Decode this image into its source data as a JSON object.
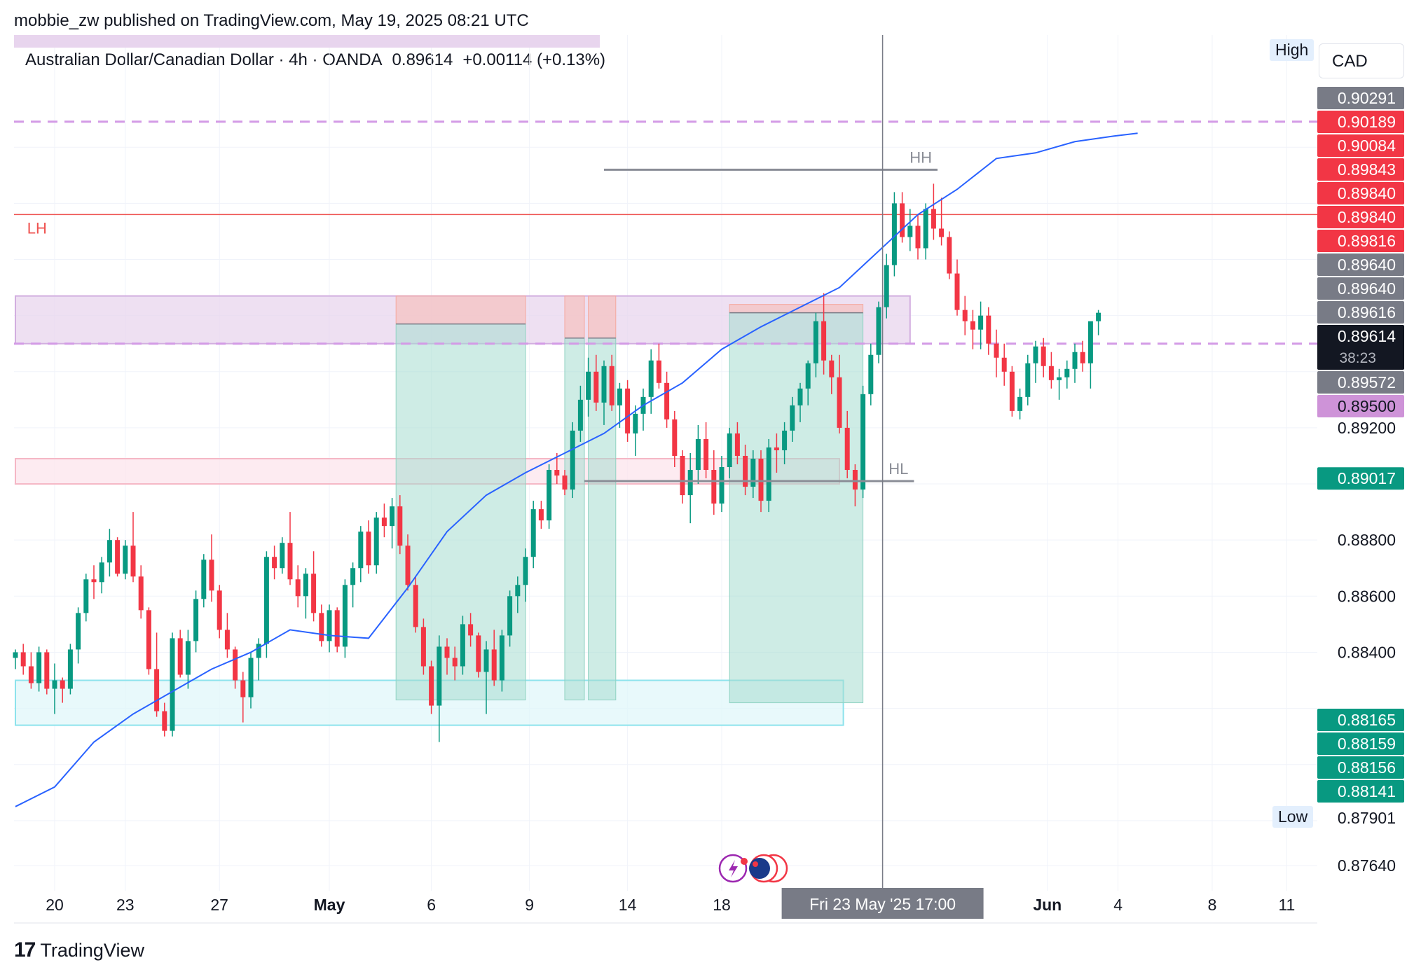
{
  "header": {
    "publisher": "mobbie_zw published on TradingView.com, May 19, 2025 08:21 UTC",
    "symbol": "Australian Dollar/Canadian Dollar · 4h · OANDA",
    "last": "0.89614",
    "change": "+0.00114 (+0.13%)"
  },
  "footer": {
    "brand": "TradingView",
    "brand_mark": "17"
  },
  "scale": {
    "currency": "CAD",
    "high_label": "High",
    "low_label": "Low"
  },
  "chart_data": {
    "type": "candlestick",
    "title": "Australian Dollar/Canadian Dollar · 4h · OANDA",
    "ylim": [
      0.8755,
      0.906
    ],
    "y_ticks": [
      0.8764,
      0.878,
      0.88,
      0.882,
      0.884,
      0.886,
      0.888,
      0.89,
      0.892,
      0.894,
      0.896,
      0.898,
      0.9,
      0.902
    ],
    "y_tick_labels": [
      {
        "value": 0.8764,
        "label": "0.87640"
      },
      {
        "value": 0.884,
        "label": "0.88400"
      },
      {
        "value": 0.886,
        "label": "0.88600"
      },
      {
        "value": 0.888,
        "label": "0.88800"
      },
      {
        "value": 0.892,
        "label": "0.89200"
      }
    ],
    "x_range": [
      0,
      165
    ],
    "x_ticks": [
      {
        "x": 5,
        "label": "20",
        "bold": false
      },
      {
        "x": 14,
        "label": "23",
        "bold": false
      },
      {
        "x": 26,
        "label": "27",
        "bold": false
      },
      {
        "x": 40,
        "label": "May",
        "bold": true
      },
      {
        "x": 53,
        "label": "6",
        "bold": false
      },
      {
        "x": 65.5,
        "label": "9",
        "bold": false
      },
      {
        "x": 78,
        "label": "14",
        "bold": false
      },
      {
        "x": 90,
        "label": "18",
        "bold": false
      },
      {
        "x": 131.5,
        "label": "Jun",
        "bold": true
      },
      {
        "x": 140.5,
        "label": "4",
        "bold": false
      },
      {
        "x": 152.5,
        "label": "8",
        "bold": false
      },
      {
        "x": 162,
        "label": "11",
        "bold": false
      }
    ],
    "crosshair": {
      "x": 110.5,
      "label": "Fri 23 May '25   17:00"
    },
    "candles_ohlc": [
      [
        0.8838,
        0.8841,
        0.8834,
        0.884
      ],
      [
        0.884,
        0.8843,
        0.8832,
        0.8835
      ],
      [
        0.8835,
        0.884,
        0.8827,
        0.8829
      ],
      [
        0.8829,
        0.8842,
        0.8826,
        0.884
      ],
      [
        0.884,
        0.8841,
        0.8825,
        0.8827
      ],
      [
        0.8827,
        0.8836,
        0.8818,
        0.883
      ],
      [
        0.883,
        0.8831,
        0.8822,
        0.8827
      ],
      [
        0.8827,
        0.8843,
        0.8825,
        0.8841
      ],
      [
        0.8841,
        0.8856,
        0.8836,
        0.8854
      ],
      [
        0.8854,
        0.8868,
        0.8851,
        0.8866
      ],
      [
        0.8866,
        0.8871,
        0.8859,
        0.8865
      ],
      [
        0.8865,
        0.8874,
        0.8861,
        0.8872
      ],
      [
        0.8872,
        0.8884,
        0.8867,
        0.888
      ],
      [
        0.888,
        0.8881,
        0.8867,
        0.8868
      ],
      [
        0.8868,
        0.888,
        0.8866,
        0.8878
      ],
      [
        0.8878,
        0.889,
        0.8865,
        0.8867
      ],
      [
        0.8867,
        0.8871,
        0.8852,
        0.8855
      ],
      [
        0.8855,
        0.8856,
        0.8832,
        0.8834
      ],
      [
        0.8834,
        0.8847,
        0.8817,
        0.8819
      ],
      [
        0.8819,
        0.8822,
        0.881,
        0.8812
      ],
      [
        0.8812,
        0.8847,
        0.881,
        0.8845
      ],
      [
        0.8845,
        0.8848,
        0.8831,
        0.8832
      ],
      [
        0.8832,
        0.8848,
        0.8827,
        0.8844
      ],
      [
        0.8844,
        0.8862,
        0.884,
        0.8859
      ],
      [
        0.8859,
        0.8875,
        0.8856,
        0.8873
      ],
      [
        0.8873,
        0.8882,
        0.8858,
        0.8862
      ],
      [
        0.8862,
        0.8864,
        0.8845,
        0.8848
      ],
      [
        0.8848,
        0.8854,
        0.8838,
        0.8841
      ],
      [
        0.8841,
        0.8842,
        0.8827,
        0.883
      ],
      [
        0.883,
        0.8833,
        0.8815,
        0.8824
      ],
      [
        0.8824,
        0.884,
        0.882,
        0.8838
      ],
      [
        0.8838,
        0.8845,
        0.883,
        0.8843
      ],
      [
        0.8843,
        0.8876,
        0.8838,
        0.8874
      ],
      [
        0.8874,
        0.8878,
        0.8866,
        0.887
      ],
      [
        0.887,
        0.8881,
        0.8868,
        0.8879
      ],
      [
        0.8879,
        0.889,
        0.8864,
        0.8866
      ],
      [
        0.8866,
        0.8871,
        0.8856,
        0.886
      ],
      [
        0.886,
        0.887,
        0.8852,
        0.8868
      ],
      [
        0.8868,
        0.8876,
        0.8851,
        0.8854
      ],
      [
        0.8854,
        0.8857,
        0.8842,
        0.8844
      ],
      [
        0.8844,
        0.8857,
        0.884,
        0.8855
      ],
      [
        0.8855,
        0.8856,
        0.884,
        0.8842
      ],
      [
        0.8842,
        0.8866,
        0.8838,
        0.8864
      ],
      [
        0.8864,
        0.8872,
        0.8856,
        0.887
      ],
      [
        0.887,
        0.8885,
        0.8865,
        0.8883
      ],
      [
        0.8883,
        0.8887,
        0.8868,
        0.8871
      ],
      [
        0.8871,
        0.889,
        0.8868,
        0.8888
      ],
      [
        0.8888,
        0.8893,
        0.8881,
        0.8885
      ],
      [
        0.8885,
        0.8895,
        0.8877,
        0.8892
      ],
      [
        0.8892,
        0.8896,
        0.8875,
        0.8878
      ],
      [
        0.8878,
        0.8882,
        0.8862,
        0.8864
      ],
      [
        0.8864,
        0.8867,
        0.8847,
        0.8849
      ],
      [
        0.8849,
        0.8852,
        0.8832,
        0.8835
      ],
      [
        0.8835,
        0.8837,
        0.8818,
        0.8821
      ],
      [
        0.8821,
        0.8846,
        0.8808,
        0.8842
      ],
      [
        0.8842,
        0.8845,
        0.8832,
        0.8838
      ],
      [
        0.8838,
        0.8842,
        0.883,
        0.8835
      ],
      [
        0.8835,
        0.8853,
        0.8832,
        0.885
      ],
      [
        0.885,
        0.8854,
        0.8842,
        0.8846
      ],
      [
        0.8846,
        0.8847,
        0.8831,
        0.8833
      ],
      [
        0.8833,
        0.8844,
        0.8818,
        0.8841
      ],
      [
        0.8841,
        0.8848,
        0.8828,
        0.883
      ],
      [
        0.883,
        0.8848,
        0.8826,
        0.8846
      ],
      [
        0.8846,
        0.8862,
        0.8842,
        0.886
      ],
      [
        0.886,
        0.8867,
        0.8854,
        0.8864
      ],
      [
        0.8864,
        0.8877,
        0.8858,
        0.8874
      ],
      [
        0.8874,
        0.8894,
        0.887,
        0.8891
      ],
      [
        0.8891,
        0.8894,
        0.8884,
        0.8887
      ],
      [
        0.8887,
        0.8907,
        0.8884,
        0.8905
      ],
      [
        0.8905,
        0.8911,
        0.89,
        0.8903
      ],
      [
        0.8903,
        0.8905,
        0.8896,
        0.8898
      ],
      [
        0.8898,
        0.8922,
        0.8895,
        0.8919
      ],
      [
        0.8919,
        0.8935,
        0.8915,
        0.893
      ],
      [
        0.893,
        0.8945,
        0.8924,
        0.894
      ],
      [
        0.894,
        0.8946,
        0.8926,
        0.8929
      ],
      [
        0.8929,
        0.8944,
        0.8921,
        0.8942
      ],
      [
        0.8942,
        0.8946,
        0.8926,
        0.8928
      ],
      [
        0.8928,
        0.8936,
        0.892,
        0.8934
      ],
      [
        0.8934,
        0.8937,
        0.8915,
        0.8918
      ],
      [
        0.8918,
        0.8928,
        0.891,
        0.8925
      ],
      [
        0.8925,
        0.8934,
        0.8919,
        0.8931
      ],
      [
        0.8931,
        0.8948,
        0.8925,
        0.8944
      ],
      [
        0.8944,
        0.895,
        0.8934,
        0.8936
      ],
      [
        0.8936,
        0.894,
        0.892,
        0.8923
      ],
      [
        0.8923,
        0.8926,
        0.8906,
        0.891
      ],
      [
        0.891,
        0.8912,
        0.8893,
        0.8896
      ],
      [
        0.8896,
        0.8911,
        0.8886,
        0.8905
      ],
      [
        0.8905,
        0.8921,
        0.89,
        0.8916
      ],
      [
        0.8916,
        0.8922,
        0.8902,
        0.8905
      ],
      [
        0.8905,
        0.8912,
        0.8889,
        0.8893
      ],
      [
        0.8893,
        0.891,
        0.889,
        0.8906
      ],
      [
        0.8906,
        0.892,
        0.8902,
        0.8918
      ],
      [
        0.8918,
        0.8922,
        0.8907,
        0.891
      ],
      [
        0.891,
        0.8914,
        0.8896,
        0.8899
      ],
      [
        0.8899,
        0.8912,
        0.8895,
        0.8909
      ],
      [
        0.8909,
        0.8912,
        0.889,
        0.8894
      ],
      [
        0.8894,
        0.8916,
        0.889,
        0.8913
      ],
      [
        0.8913,
        0.8918,
        0.8904,
        0.8912
      ],
      [
        0.8912,
        0.8922,
        0.8907,
        0.8919
      ],
      [
        0.8919,
        0.8931,
        0.8915,
        0.8928
      ],
      [
        0.8928,
        0.8936,
        0.8922,
        0.8934
      ],
      [
        0.8934,
        0.8944,
        0.8928,
        0.8943
      ],
      [
        0.8943,
        0.8961,
        0.8938,
        0.8958
      ],
      [
        0.8958,
        0.8968,
        0.8939,
        0.8944
      ],
      [
        0.8944,
        0.8946,
        0.8932,
        0.8938
      ],
      [
        0.8938,
        0.8946,
        0.8918,
        0.892
      ],
      [
        0.892,
        0.8926,
        0.8902,
        0.8905
      ],
      [
        0.8905,
        0.8907,
        0.8892,
        0.8898
      ],
      [
        0.8898,
        0.8935,
        0.8895,
        0.8932
      ],
      [
        0.8932,
        0.895,
        0.8928,
        0.8946
      ],
      [
        0.8946,
        0.8965,
        0.8943,
        0.8963
      ],
      [
        0.8963,
        0.8982,
        0.8959,
        0.8978
      ],
      [
        0.8978,
        0.9004,
        0.8974,
        0.9
      ],
      [
        0.9,
        0.9004,
        0.8986,
        0.8988
      ],
      [
        0.8988,
        0.8998,
        0.8983,
        0.8992
      ],
      [
        0.8992,
        0.8996,
        0.898,
        0.8984
      ],
      [
        0.8984,
        0.9,
        0.898,
        0.8998
      ],
      [
        0.8998,
        0.9007,
        0.8987,
        0.8991
      ],
      [
        0.8991,
        0.9002,
        0.8985,
        0.8988
      ],
      [
        0.8988,
        0.899,
        0.8973,
        0.8975
      ],
      [
        0.8975,
        0.898,
        0.896,
        0.8962
      ],
      [
        0.8962,
        0.8967,
        0.8953,
        0.8958
      ],
      [
        0.8958,
        0.8962,
        0.8948,
        0.8955
      ],
      [
        0.8955,
        0.8965,
        0.8948,
        0.896
      ],
      [
        0.896,
        0.8963,
        0.8946,
        0.895
      ],
      [
        0.895,
        0.8955,
        0.8938,
        0.8945
      ],
      [
        0.8945,
        0.895,
        0.8935,
        0.894
      ],
      [
        0.894,
        0.8942,
        0.8924,
        0.8926
      ],
      [
        0.8926,
        0.8934,
        0.8923,
        0.8931
      ],
      [
        0.8931,
        0.8946,
        0.8928,
        0.8943
      ],
      [
        0.8943,
        0.8951,
        0.8936,
        0.8949
      ],
      [
        0.8949,
        0.8952,
        0.8938,
        0.8942
      ],
      [
        0.8942,
        0.8947,
        0.8934,
        0.8937
      ],
      [
        0.8937,
        0.8941,
        0.893,
        0.8938
      ],
      [
        0.8938,
        0.8944,
        0.8934,
        0.8941
      ],
      [
        0.8941,
        0.895,
        0.8936,
        0.8947
      ],
      [
        0.8947,
        0.8951,
        0.894,
        0.8943
      ],
      [
        0.8943,
        0.8949,
        0.8934,
        0.8958
      ],
      [
        0.8958,
        0.8962,
        0.8953,
        0.8961
      ]
    ],
    "ema": [
      [
        0,
        0.8785
      ],
      [
        5,
        0.8792
      ],
      [
        10,
        0.8808
      ],
      [
        15,
        0.8818
      ],
      [
        20,
        0.8826
      ],
      [
        25,
        0.8834
      ],
      [
        30,
        0.884
      ],
      [
        35,
        0.8848
      ],
      [
        40,
        0.8846
      ],
      [
        45,
        0.8845
      ],
      [
        50,
        0.8863
      ],
      [
        55,
        0.8883
      ],
      [
        60,
        0.8896
      ],
      [
        65,
        0.8904
      ],
      [
        70,
        0.8911
      ],
      [
        75,
        0.8918
      ],
      [
        80,
        0.8928
      ],
      [
        85,
        0.8936
      ],
      [
        90,
        0.8948
      ],
      [
        95,
        0.8956
      ],
      [
        100,
        0.8963
      ],
      [
        105,
        0.897
      ],
      [
        110,
        0.8983
      ],
      [
        115,
        0.8996
      ],
      [
        120,
        0.9005
      ],
      [
        125,
        0.9016
      ],
      [
        130,
        0.9018
      ],
      [
        135,
        0.9022
      ],
      [
        140,
        0.9024
      ],
      [
        143,
        0.9025
      ]
    ],
    "zones": [
      {
        "name": "liquidity-zone",
        "x": [
          0,
          105
        ],
        "y": [
          0.89,
          0.8909
        ],
        "fill": "#fce4ec",
        "stroke": "#f5b7c5"
      },
      {
        "name": "demand-zone",
        "x": [
          0,
          105.5
        ],
        "y": [
          0.8814,
          0.883
        ],
        "fill": "#e0f7fa",
        "stroke": "#8de3ec"
      },
      {
        "name": "supply-zone",
        "x": [
          0,
          114
        ],
        "y": [
          0.895,
          0.8967
        ],
        "fill": "#e8d5ee",
        "stroke": "#d2aee0"
      }
    ],
    "positions": [
      {
        "name": "position-1",
        "x": [
          48.5,
          65
        ],
        "target_top": 0.8967,
        "entry": 0.8957,
        "stop_bottom": 0.8823
      },
      {
        "name": "position-2",
        "x": [
          70,
          72.5
        ],
        "target_top": 0.8967,
        "entry": 0.8952,
        "stop_bottom": 0.8823
      },
      {
        "name": "position-3",
        "x": [
          73,
          76.5
        ],
        "target_top": 0.8967,
        "entry": 0.8952,
        "stop_bottom": 0.8823
      },
      {
        "name": "position-4",
        "x": [
          91,
          108
        ],
        "target_top": 0.8964,
        "entry": 0.8961,
        "stop_bottom": 0.8822
      }
    ],
    "levels": [
      {
        "name": "dashed-level-top",
        "value": 0.90291,
        "style": "dashed",
        "color": "#d39ae6"
      },
      {
        "name": "dashed-level-mid",
        "value": 0.895,
        "style": "dashed",
        "color": "#d39ae6"
      },
      {
        "name": "lh-level",
        "value": 0.8996,
        "style": "solid",
        "color": "#ef5350",
        "label": "LH",
        "label_x": 1.5
      }
    ],
    "segments": [
      {
        "name": "hh-line",
        "x": [
          75,
          117.5
        ],
        "y": 0.9012,
        "color": "#8a8d96",
        "label": "HH"
      },
      {
        "name": "hl-line",
        "x": [
          72.5,
          114.5
        ],
        "y": 0.8901,
        "color": "#8a8d96",
        "label": "HL"
      }
    ],
    "price_tags": [
      {
        "label": "0.90291",
        "value": 0.90291,
        "bg": "#787b86",
        "fg": "#ffffff"
      },
      {
        "label": "0.90189",
        "value": 0.90189,
        "bg": "#f23645",
        "fg": "#ffffff"
      },
      {
        "label": "0.90084",
        "value": 0.90084,
        "bg": "#f23645",
        "fg": "#ffffff"
      },
      {
        "label": "0.89843",
        "value": 0.89843,
        "bg": "#f23645",
        "fg": "#ffffff"
      },
      {
        "label": "0.89840",
        "value": 0.8984,
        "bg": "#f23645",
        "fg": "#ffffff"
      },
      {
        "label": "0.89840",
        "value": 0.8984,
        "bg": "#f23645",
        "fg": "#ffffff"
      },
      {
        "label": "0.89816",
        "value": 0.89816,
        "bg": "#f23645",
        "fg": "#ffffff"
      },
      {
        "label": "0.89640",
        "value": 0.8964,
        "bg": "#787b86",
        "fg": "#ffffff"
      },
      {
        "label": "0.89640",
        "value": 0.8964,
        "bg": "#787b86",
        "fg": "#ffffff"
      },
      {
        "label": "0.89616",
        "value": 0.89616,
        "bg": "#787b86",
        "fg": "#ffffff"
      },
      {
        "label": "0.89614",
        "value": 0.89614,
        "bg": "#131722",
        "fg": "#ffffff",
        "sub": "38:23"
      },
      {
        "label": "0.89572",
        "value": 0.89572,
        "bg": "#787b86",
        "fg": "#ffffff"
      },
      {
        "label": "0.89500",
        "value": 0.895,
        "bg": "#ce93d8",
        "fg": "#131722"
      },
      {
        "label": "0.89017",
        "value": 0.89017,
        "bg": "#089981",
        "fg": "#ffffff"
      },
      {
        "label": "0.88165",
        "value": 0.88165,
        "bg": "#089981",
        "fg": "#ffffff"
      },
      {
        "label": "0.88159",
        "value": 0.88159,
        "bg": "#089981",
        "fg": "#ffffff"
      },
      {
        "label": "0.88156",
        "value": 0.88156,
        "bg": "#089981",
        "fg": "#ffffff"
      },
      {
        "label": "0.88141",
        "value": 0.88141,
        "bg": "#089981",
        "fg": "#ffffff"
      },
      {
        "label": "0.87901",
        "value": 0.87901,
        "bg": "#ffffff",
        "fg": "#131722"
      }
    ],
    "colors": {
      "up": "#089981",
      "down": "#f23645",
      "ema": "#2962ff",
      "grid": "#f0f3fa"
    }
  }
}
